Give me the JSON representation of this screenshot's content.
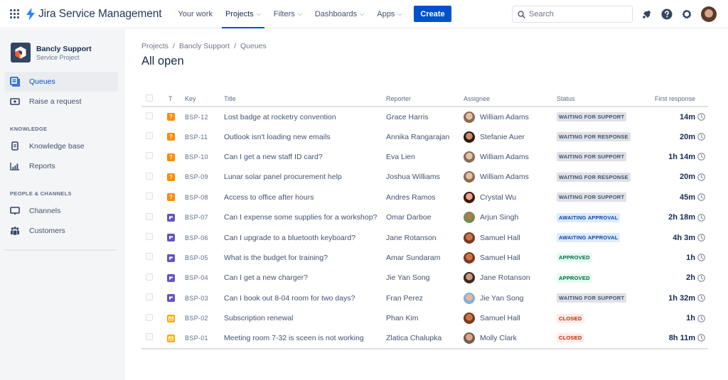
{
  "topnav": {
    "brand": "Jira Service Management",
    "items": [
      {
        "label": "Your work",
        "dropdown": false,
        "active": false
      },
      {
        "label": "Projects",
        "dropdown": true,
        "active": true
      },
      {
        "label": "Filters",
        "dropdown": true,
        "active": false
      },
      {
        "label": "Dashboards",
        "dropdown": true,
        "active": false
      },
      {
        "label": "Apps",
        "dropdown": true,
        "active": false
      }
    ],
    "create_label": "Create",
    "search_placeholder": "Search",
    "icons": [
      "notifications-icon",
      "help-icon",
      "settings-icon",
      "avatar"
    ]
  },
  "sidebar": {
    "project_name": "Bancly Support",
    "project_type": "Service Project",
    "items": [
      {
        "label": "Queues",
        "icon": "queues-icon",
        "active": true
      },
      {
        "label": "Raise a request",
        "icon": "raise-request-icon",
        "active": false
      }
    ],
    "sections": [
      {
        "title": "KNOWLEDGE",
        "items": [
          {
            "label": "Knowledge base",
            "icon": "knowledge-base-icon"
          },
          {
            "label": "Reports",
            "icon": "reports-icon"
          }
        ]
      },
      {
        "title": "PEOPLE & CHANNELS",
        "items": [
          {
            "label": "Channels",
            "icon": "channels-icon"
          },
          {
            "label": "Customers",
            "icon": "customers-icon"
          }
        ]
      }
    ]
  },
  "main": {
    "breadcrumb": [
      "Projects",
      "Bancly Support",
      "Queues"
    ],
    "title": "All open",
    "columns": [
      "T",
      "Key",
      "Title",
      "Reporter",
      "Assignee",
      "Status",
      "First response"
    ],
    "rows": [
      {
        "type": "question",
        "key": "BSP-12",
        "title": "Lost badge at rocketry convention",
        "reporter": "Grace Harris",
        "assignee": "William Adams",
        "status": "WAITING FOR SUPPORT",
        "status_kind": "default",
        "first_response": "14m"
      },
      {
        "type": "question",
        "key": "BSP-11",
        "title": "Outlook isn't loading new emails",
        "reporter": "Annika Rangarajan",
        "assignee": "Stefanie Auer",
        "status": "WAITING FOR RESPONSE",
        "status_kind": "default",
        "first_response": "20m"
      },
      {
        "type": "question",
        "key": "BSP-10",
        "title": "Can I get a new staff ID card?",
        "reporter": "Eva Lien",
        "assignee": "William Adams",
        "status": "WAITING FOR SUPPORT",
        "status_kind": "default",
        "first_response": "1h 14m"
      },
      {
        "type": "question",
        "key": "BSP-09",
        "title": "Lunar solar panel procurement help",
        "reporter": "Joshua Williams",
        "assignee": "William Adams",
        "status": "WAITING FOR RESPONSE",
        "status_kind": "default",
        "first_response": "20m"
      },
      {
        "type": "question",
        "key": "BSP-08",
        "title": "Access to office after hours",
        "reporter": "Andres Ramos",
        "assignee": "Crystal Wu",
        "status": "WAITING FOR SUPPORT",
        "status_kind": "default",
        "first_response": "45m"
      },
      {
        "type": "service",
        "key": "BSP-07",
        "title": "Can I expense some supplies for a workshop?",
        "reporter": "Omar Darboe",
        "assignee": "Arjun Singh",
        "status": "AWAITING APPROVAL",
        "status_kind": "info",
        "first_response": "2h 18m"
      },
      {
        "type": "service",
        "key": "BSP-06",
        "title": "Can I upgrade to a bluetooth keyboard?",
        "reporter": "Jane Rotanson",
        "assignee": "Samuel Hall",
        "status": "AWAITING APPROVAL",
        "status_kind": "info",
        "first_response": "4h 3m"
      },
      {
        "type": "service",
        "key": "BSP-05",
        "title": "What is the budget for training?",
        "reporter": "Amar Sundaram",
        "assignee": "Samuel Hall",
        "status": "APPROVED",
        "status_kind": "success",
        "first_response": "1h"
      },
      {
        "type": "service",
        "key": "BSP-04",
        "title": "Can I get a new charger?",
        "reporter": "Jie Yan Song",
        "assignee": "Jane Rotanson",
        "status": "APPROVED",
        "status_kind": "success",
        "first_response": "2h"
      },
      {
        "type": "service",
        "key": "BSP-03",
        "title": "Can I book out 8-04 room for two days?",
        "reporter": "Fran Perez",
        "assignee": "Jie Yan Song",
        "status": "WAITING FOR SUPPORT",
        "status_kind": "default",
        "first_response": "1h 32m"
      },
      {
        "type": "email",
        "key": "BSP-02",
        "title": "Subscription renewal",
        "reporter": "Phan Kim",
        "assignee": "Samuel Hall",
        "status": "CLOSED",
        "status_kind": "removed",
        "first_response": "1h"
      },
      {
        "type": "email",
        "key": "BSP-01",
        "title": "Meeting room 7-32 is sceen is not working",
        "reporter": "Zlatica Chalupka",
        "assignee": "Molly Clark",
        "status": "CLOSED",
        "status_kind": "removed",
        "first_response": "8h 11m"
      }
    ]
  },
  "colors": {
    "brand_blue": "#0052CC",
    "question_type": "#FF8B00",
    "service_type": "#6554C0",
    "email_type": "#FFAB00",
    "lozenge_default_bg": "#DFE1E6",
    "lozenge_default_fg": "#42526E",
    "lozenge_info_bg": "#DEEBFF",
    "lozenge_info_fg": "#0747A6",
    "lozenge_success_bg": "#E3FCEF",
    "lozenge_success_fg": "#006644",
    "lozenge_removed_bg": "#FFEBE6",
    "lozenge_removed_fg": "#BF2600"
  }
}
